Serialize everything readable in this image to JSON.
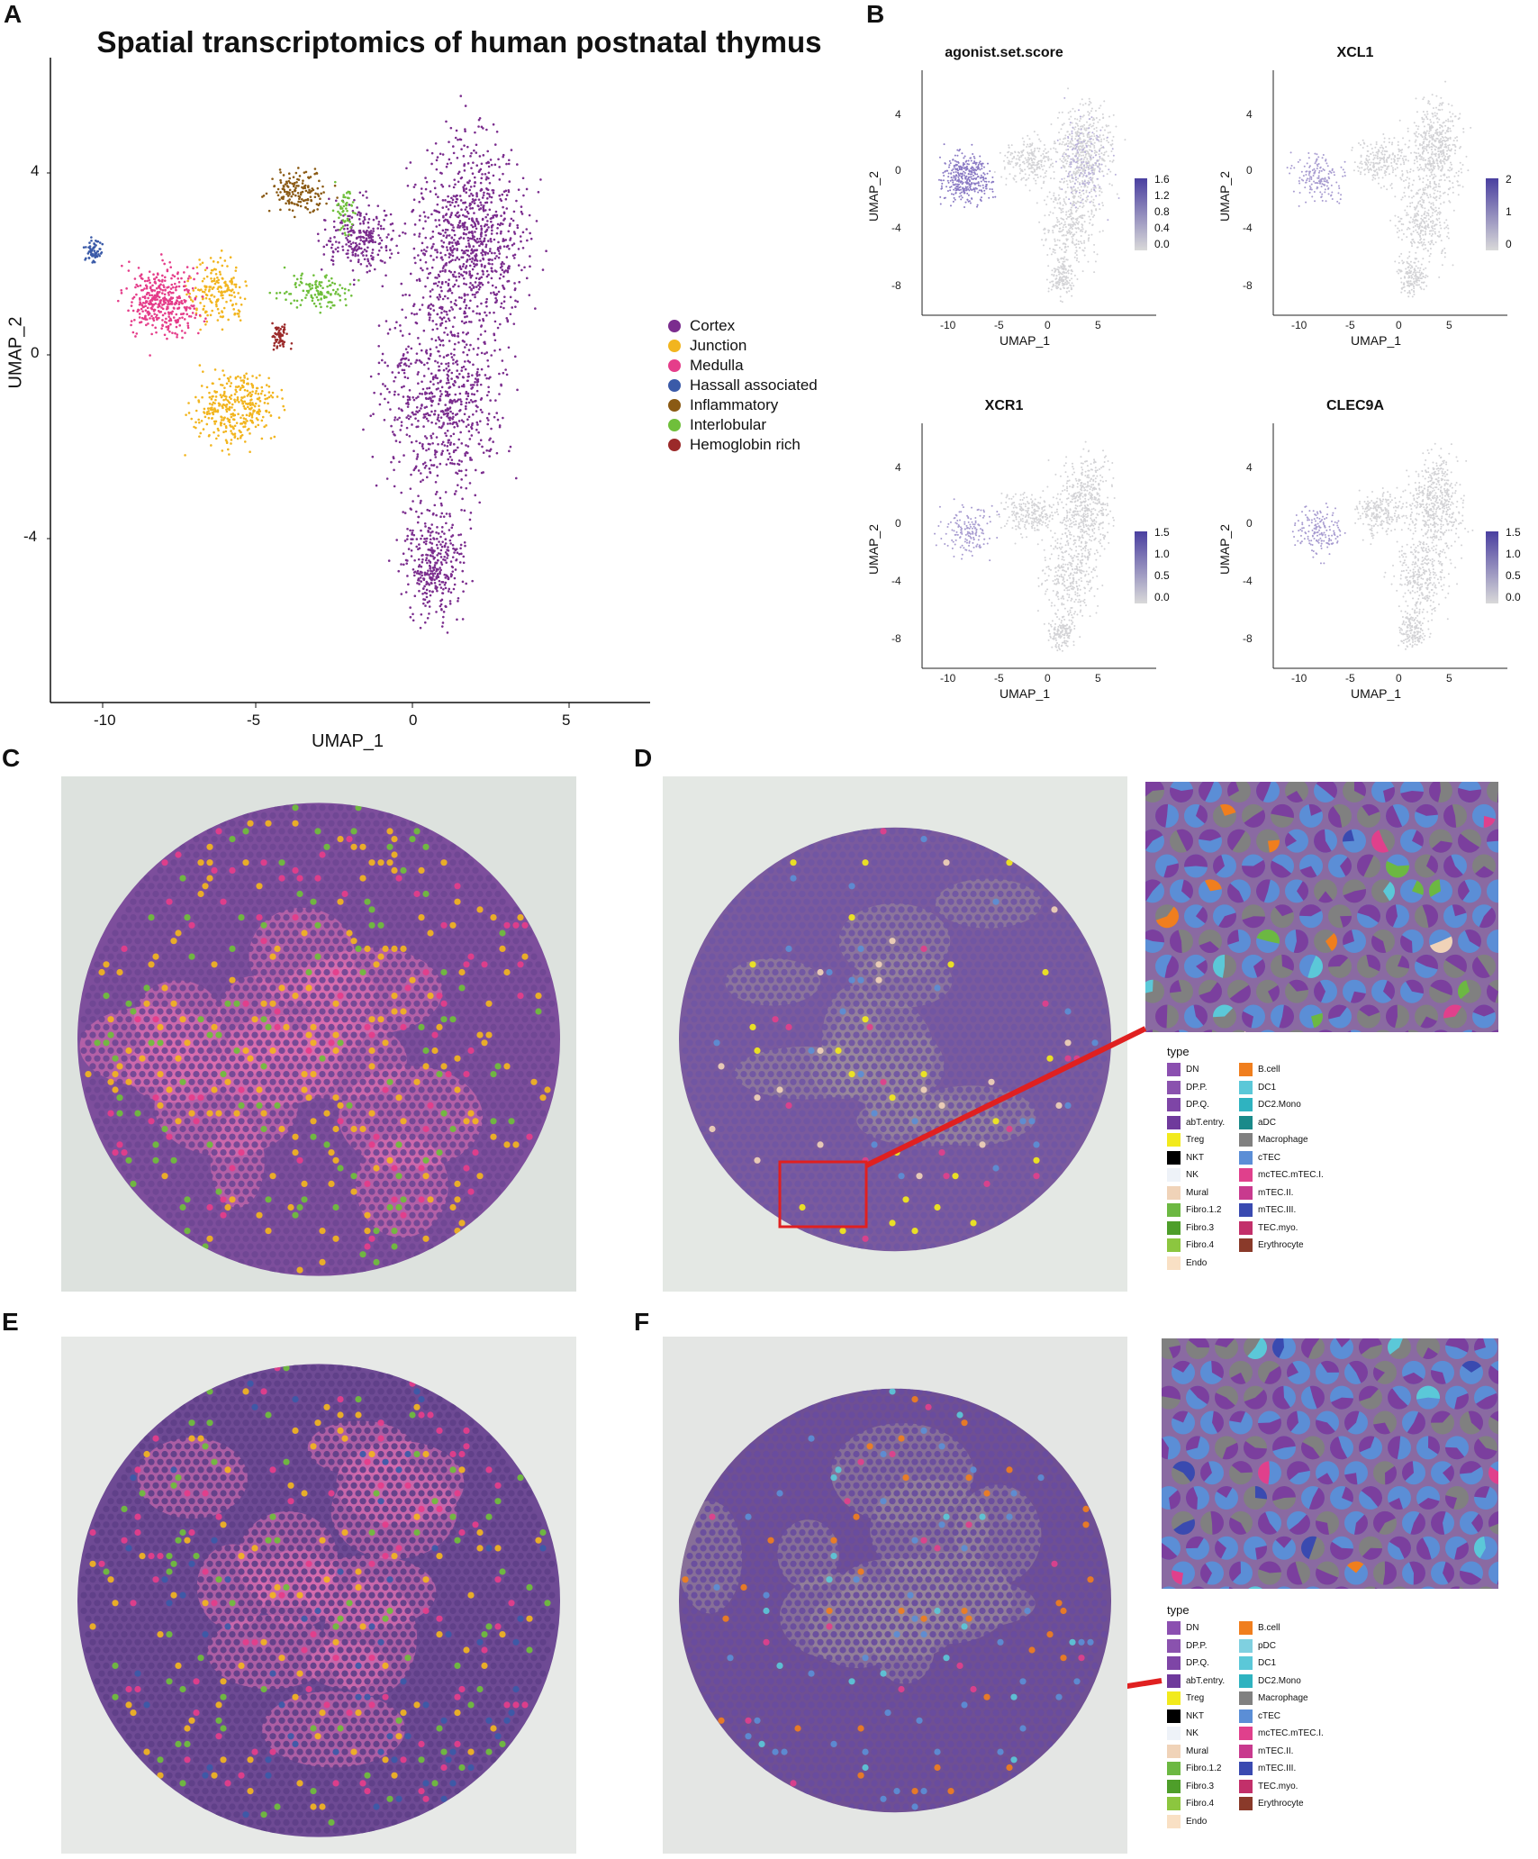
{
  "panels": {
    "a": "A",
    "b": "B",
    "c": "C",
    "d": "D",
    "e": "E",
    "f": "F"
  },
  "panel_a": {
    "title": "Spatial transcriptomics of human postnatal thymus",
    "xlabel": "UMAP_1",
    "ylabel": "UMAP_2",
    "x_ticks": [
      "-10",
      "-5",
      "0",
      "5"
    ],
    "y_ticks": [
      "4",
      "0",
      "-4"
    ],
    "legend": [
      {
        "label": "Cortex",
        "color": "#7b2d8e"
      },
      {
        "label": "Junction",
        "color": "#f2b51f"
      },
      {
        "label": "Medulla",
        "color": "#e53d8a"
      },
      {
        "label": "Hassall associated",
        "color": "#3a5aa8"
      },
      {
        "label": "Inflammatory",
        "color": "#8a5a14"
      },
      {
        "label": "Interlobular",
        "color": "#6fbf3b"
      },
      {
        "label": "Hemoglobin rich",
        "color": "#9b2a2a"
      }
    ]
  },
  "panel_b": {
    "plots": [
      {
        "title": "agonist.set.score",
        "cb_ticks": [
          "1.6",
          "1.2",
          "0.8",
          "0.4",
          "0.0"
        ]
      },
      {
        "title": "XCL1",
        "cb_ticks": [
          "2",
          "1",
          "0"
        ]
      },
      {
        "title": "XCR1",
        "cb_ticks": [
          "1.5",
          "1.0",
          "0.5",
          "0.0"
        ]
      },
      {
        "title": "CLEC9A",
        "cb_ticks": [
          "1.5",
          "1.0",
          "0.5",
          "0.0"
        ]
      }
    ],
    "xlabel": "UMAP_1",
    "ylabel": "UMAP_2",
    "x_ticks": [
      "-10",
      "-5",
      "0",
      "5"
    ],
    "y_ticks": [
      "4",
      "0",
      "-4",
      "-8"
    ],
    "low_color": "#d9d9d9",
    "high_color": "#4a3fa0"
  },
  "legend_d": {
    "title": "type",
    "col1": [
      {
        "label": "DN",
        "color": "#8b4fb0"
      },
      {
        "label": "DP.P.",
        "color": "#8a52ae"
      },
      {
        "label": "DP.Q.",
        "color": "#7e45a6"
      },
      {
        "label": "abT.entry.",
        "color": "#6f3a9c"
      },
      {
        "label": "Treg",
        "color": "#f2ea1c"
      },
      {
        "label": "NKT",
        "color": "#000000"
      },
      {
        "label": "NK",
        "color": "#eef2f8"
      },
      {
        "label": "Mural",
        "color": "#f0d3b8"
      },
      {
        "label": "Fibro.1.2",
        "color": "#6cb842"
      },
      {
        "label": "Fibro.3",
        "color": "#4e9e2a"
      },
      {
        "label": "Fibro.4",
        "color": "#8cc63f"
      },
      {
        "label": "Endo",
        "color": "#f9e0c4"
      }
    ],
    "col2": [
      {
        "label": "B.cell",
        "color": "#f07e1e"
      },
      {
        "label": "DC1",
        "color": "#5bc8d8"
      },
      {
        "label": "DC2.Mono",
        "color": "#2fb3c0"
      },
      {
        "label": "aDC",
        "color": "#1a8a8a"
      },
      {
        "label": "Macrophage",
        "color": "#808080"
      },
      {
        "label": "cTEC",
        "color": "#5b8ed6"
      },
      {
        "label": "mcTEC.mTEC.I.",
        "color": "#e0408c"
      },
      {
        "label": "mTEC.II.",
        "color": "#c83a8e"
      },
      {
        "label": "mTEC.III.",
        "color": "#3a4ab0"
      },
      {
        "label": "TEC.myo.",
        "color": "#c2306a"
      },
      {
        "label": "Erythrocyte",
        "color": "#8a3a2a"
      }
    ]
  },
  "legend_f": {
    "title": "type",
    "col1": [
      {
        "label": "DN",
        "color": "#8b4fb0"
      },
      {
        "label": "DP.P.",
        "color": "#8a52ae"
      },
      {
        "label": "DP.Q.",
        "color": "#7e45a6"
      },
      {
        "label": "abT.entry.",
        "color": "#6f3a9c"
      },
      {
        "label": "Treg",
        "color": "#f2ea1c"
      },
      {
        "label": "NKT",
        "color": "#000000"
      },
      {
        "label": "NK",
        "color": "#eef2f8"
      },
      {
        "label": "Mural",
        "color": "#f0d3b8"
      },
      {
        "label": "Fibro.1.2",
        "color": "#6cb842"
      },
      {
        "label": "Fibro.3",
        "color": "#4e9e2a"
      },
      {
        "label": "Fibro.4",
        "color": "#8cc63f"
      },
      {
        "label": "Endo",
        "color": "#f9e0c4"
      }
    ],
    "col2": [
      {
        "label": "B.cell",
        "color": "#f07e1e"
      },
      {
        "label": "pDC",
        "color": "#7fd0e0"
      },
      {
        "label": "DC1",
        "color": "#5bc8d8"
      },
      {
        "label": "DC2.Mono",
        "color": "#2fb3c0"
      },
      {
        "label": "Macrophage",
        "color": "#808080"
      },
      {
        "label": "cTEC",
        "color": "#5b8ed6"
      },
      {
        "label": "mcTEC.mTEC.I.",
        "color": "#e0408c"
      },
      {
        "label": "mTEC.II.",
        "color": "#c83a8e"
      },
      {
        "label": "mTEC.III.",
        "color": "#3a4ab0"
      },
      {
        "label": "TEC.myo.",
        "color": "#c2306a"
      },
      {
        "label": "Erythrocyte",
        "color": "#8a3a2a"
      }
    ]
  }
}
